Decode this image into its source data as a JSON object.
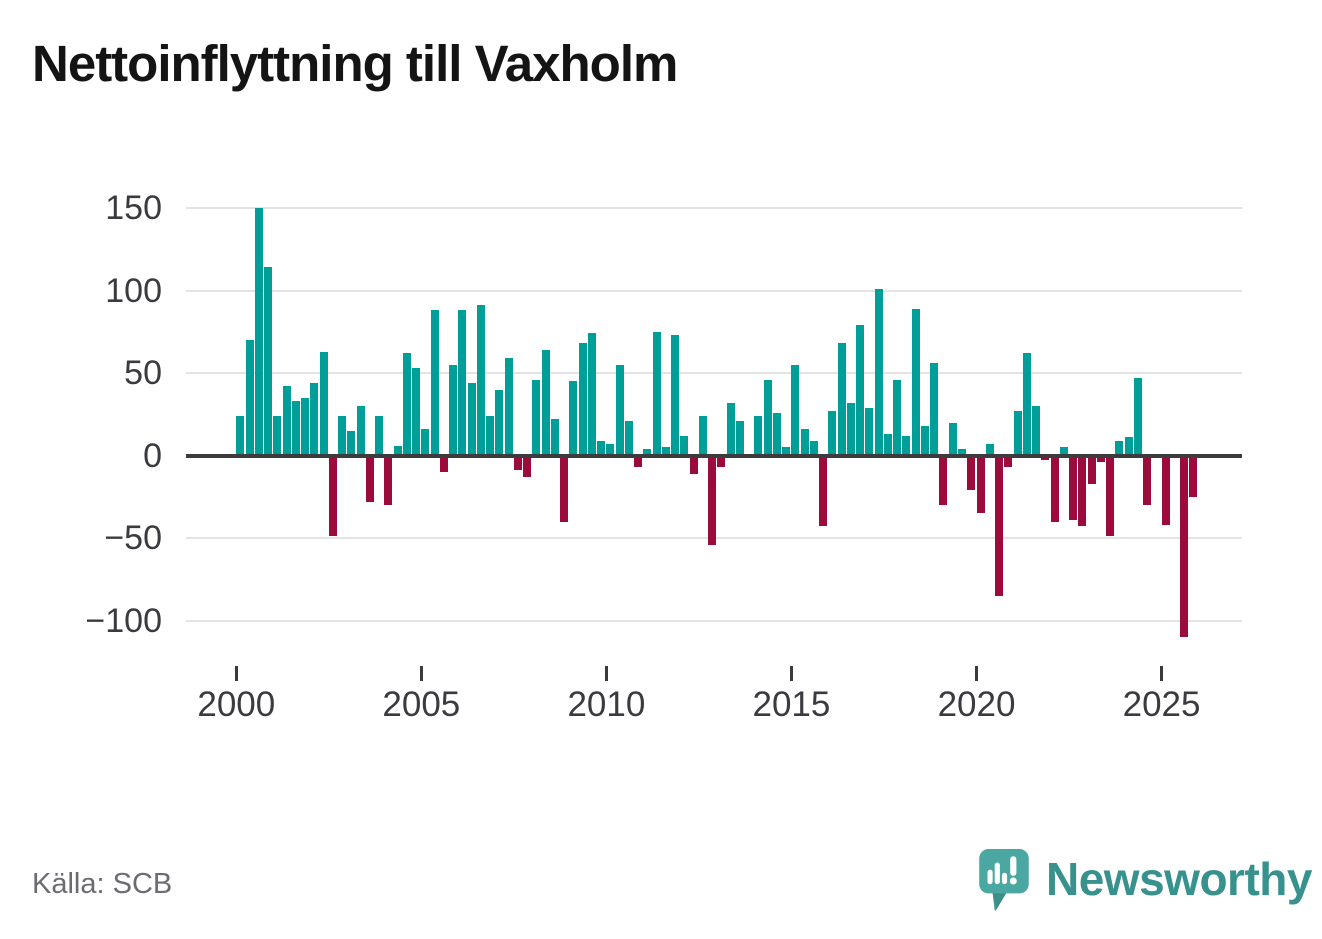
{
  "title": "Nettoinflyttning till Vaxholm",
  "source": "Källa: SCB",
  "branding": {
    "logo_text": "Newsworthy",
    "logo_icon": "bar-chart-speech-bubble-icon",
    "logo_text_color": "#37928d",
    "logo_mark_color": "#4ba7a1"
  },
  "colors": {
    "positive_bar": "#009e98",
    "negative_bar": "#9b0c3d",
    "gridline": "#e3e3e3",
    "zero_line": "#3c3c3c",
    "axis_text": "#3a3a40",
    "source_text": "#6b6b74",
    "title_text": "#141414"
  },
  "y_axis": {
    "tick_labels": [
      "150",
      "100",
      "50",
      "0",
      "−50",
      "−100"
    ],
    "tick_values": [
      150,
      100,
      50,
      0,
      -50,
      -100
    ]
  },
  "x_axis": {
    "tick_labels": [
      "2000",
      "2005",
      "2010",
      "2015",
      "2020",
      "2025"
    ],
    "tick_years": [
      2000,
      2005,
      2010,
      2015,
      2020,
      2025
    ]
  },
  "chart_data": {
    "type": "bar",
    "title": "Nettoinflyttning till Vaxholm",
    "frequency": "quarterly",
    "start_period": "2000Q1",
    "end_period": "2025Q4",
    "grid": true,
    "legend": false,
    "ylim": [
      -120,
      160
    ],
    "positive_color": "#009e98",
    "negative_color": "#9b0c3d",
    "values_by_year": [
      {
        "year": 2000,
        "q": [
          24,
          70,
          150,
          114
        ]
      },
      {
        "year": 2001,
        "q": [
          24,
          42,
          33,
          35
        ]
      },
      {
        "year": 2002,
        "q": [
          44,
          63,
          -49,
          24
        ]
      },
      {
        "year": 2003,
        "q": [
          15,
          30,
          -28,
          24
        ]
      },
      {
        "year": 2004,
        "q": [
          -30,
          6,
          62,
          53
        ]
      },
      {
        "year": 2005,
        "q": [
          16,
          88,
          -10,
          55
        ]
      },
      {
        "year": 2006,
        "q": [
          88,
          44,
          91,
          24
        ]
      },
      {
        "year": 2007,
        "q": [
          40,
          59,
          -9,
          -13
        ]
      },
      {
        "year": 2008,
        "q": [
          46,
          64,
          22,
          -40
        ]
      },
      {
        "year": 2009,
        "q": [
          45,
          68,
          74,
          9
        ]
      },
      {
        "year": 2010,
        "q": [
          7,
          55,
          21,
          -7
        ]
      },
      {
        "year": 2011,
        "q": [
          4,
          75,
          5,
          73
        ]
      },
      {
        "year": 2012,
        "q": [
          12,
          -11,
          24,
          -54
        ]
      },
      {
        "year": 2013,
        "q": [
          -7,
          32,
          21,
          0
        ]
      },
      {
        "year": 2014,
        "q": [
          24,
          46,
          26,
          5
        ]
      },
      {
        "year": 2015,
        "q": [
          55,
          16,
          9,
          -43
        ]
      },
      {
        "year": 2016,
        "q": [
          27,
          68,
          32,
          79
        ]
      },
      {
        "year": 2017,
        "q": [
          29,
          101,
          13,
          46
        ]
      },
      {
        "year": 2018,
        "q": [
          12,
          89,
          18,
          56
        ]
      },
      {
        "year": 2019,
        "q": [
          -30,
          20,
          4,
          -21
        ]
      },
      {
        "year": 2020,
        "q": [
          -35,
          7,
          -85,
          -7
        ]
      },
      {
        "year": 2021,
        "q": [
          27,
          62,
          30,
          -3
        ]
      },
      {
        "year": 2022,
        "q": [
          -40,
          5,
          -39,
          -43
        ]
      },
      {
        "year": 2023,
        "q": [
          -17,
          -4,
          -49,
          9
        ]
      },
      {
        "year": 2024,
        "q": [
          11,
          47,
          -30,
          0
        ]
      },
      {
        "year": 2025,
        "q": [
          -42,
          0,
          -110,
          -25
        ]
      }
    ]
  }
}
